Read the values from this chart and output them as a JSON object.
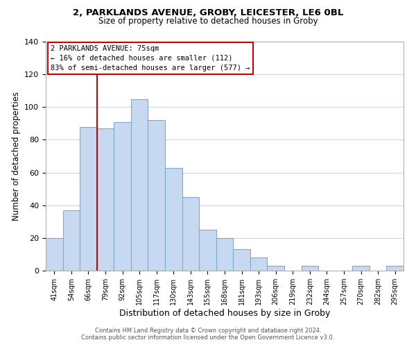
{
  "title1": "2, PARKLANDS AVENUE, GROBY, LEICESTER, LE6 0BL",
  "title2": "Size of property relative to detached houses in Groby",
  "xlabel": "Distribution of detached houses by size in Groby",
  "ylabel": "Number of detached properties",
  "bin_labels": [
    "41sqm",
    "54sqm",
    "66sqm",
    "79sqm",
    "92sqm",
    "105sqm",
    "117sqm",
    "130sqm",
    "143sqm",
    "155sqm",
    "168sqm",
    "181sqm",
    "193sqm",
    "206sqm",
    "219sqm",
    "232sqm",
    "244sqm",
    "257sqm",
    "270sqm",
    "282sqm",
    "295sqm"
  ],
  "bar_heights": [
    20,
    37,
    88,
    87,
    91,
    105,
    92,
    63,
    45,
    25,
    20,
    13,
    8,
    3,
    0,
    3,
    0,
    0,
    3,
    0,
    3
  ],
  "bar_color": "#c6d9f1",
  "bar_edge_color": "#7fa8d1",
  "vline_x": 3,
  "vline_color": "#cc0000",
  "annotation_title": "2 PARKLANDS AVENUE: 75sqm",
  "annotation_line1": "← 16% of detached houses are smaller (112)",
  "annotation_line2": "83% of semi-detached houses are larger (577) →",
  "annotation_box_color": "#ffffff",
  "annotation_box_edge": "#cc0000",
  "ylim": [
    0,
    140
  ],
  "yticks": [
    0,
    20,
    40,
    60,
    80,
    100,
    120,
    140
  ],
  "footer1": "Contains HM Land Registry data © Crown copyright and database right 2024.",
  "footer2": "Contains public sector information licensed under the Open Government Licence v3.0.",
  "bg_color": "#ffffff",
  "grid_color": "#c8d8ec"
}
